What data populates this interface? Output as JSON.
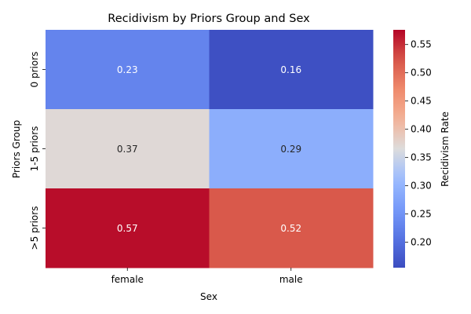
{
  "chart_data": {
    "type": "heatmap",
    "title": "Recidivism by Priors Group and Sex",
    "xlabel": "Sex",
    "ylabel": "Priors Group",
    "x_categories": [
      "female",
      "male"
    ],
    "y_categories": [
      "0 priors",
      "1-5 priors",
      ">5 priors"
    ],
    "values": [
      [
        0.23,
        0.16
      ],
      [
        0.37,
        0.29
      ],
      [
        0.57,
        0.52
      ]
    ],
    "value_labels": [
      [
        "0.23",
        "0.16"
      ],
      [
        "0.37",
        "0.29"
      ],
      [
        "0.57",
        "0.52"
      ]
    ],
    "colorbar": {
      "label": "Recidivism Rate",
      "vmin": 0.155,
      "vmax": 0.576,
      "ticks": [
        0.2,
        0.25,
        0.3,
        0.35,
        0.4,
        0.45,
        0.5,
        0.55
      ],
      "tick_labels": [
        "0.20",
        "0.25",
        "0.30",
        "0.35",
        "0.40",
        "0.45",
        "0.50",
        "0.55"
      ],
      "colormap": "coolwarm"
    }
  }
}
